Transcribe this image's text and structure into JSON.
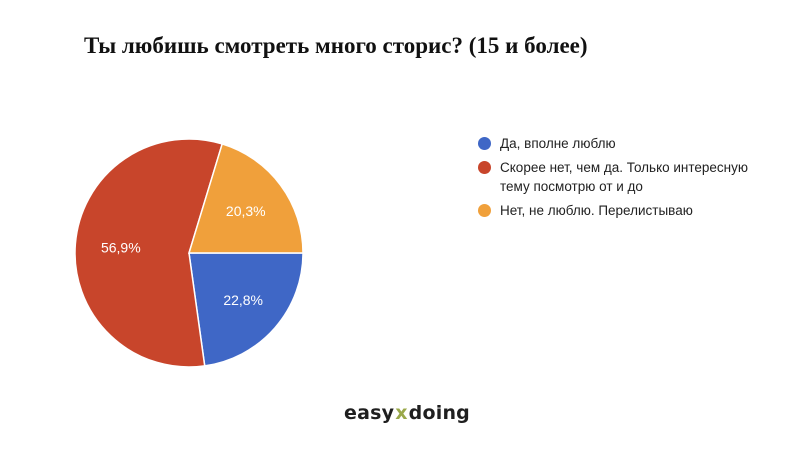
{
  "title": "Ты любишь смотреть много сторис? (15 и более)",
  "chart_data": {
    "type": "pie",
    "slices": [
      {
        "label": "Да, вполне люблю",
        "value": 22.8,
        "value_label": "22,8%",
        "color": "#3f67c6"
      },
      {
        "label": "Скорее нет, чем да. Только интересную тему посмотрю от и до",
        "value": 56.9,
        "value_label": "56,9%",
        "color": "#c8452b"
      },
      {
        "label": "Нет, не люблю. Перелистываю",
        "value": 20.3,
        "value_label": "20,3%",
        "color": "#f0a03b"
      }
    ],
    "start": "3 o'clock, clockwise",
    "legend_position": "right"
  },
  "brand": {
    "left": "easy",
    "mark": "x",
    "right": "doing"
  }
}
